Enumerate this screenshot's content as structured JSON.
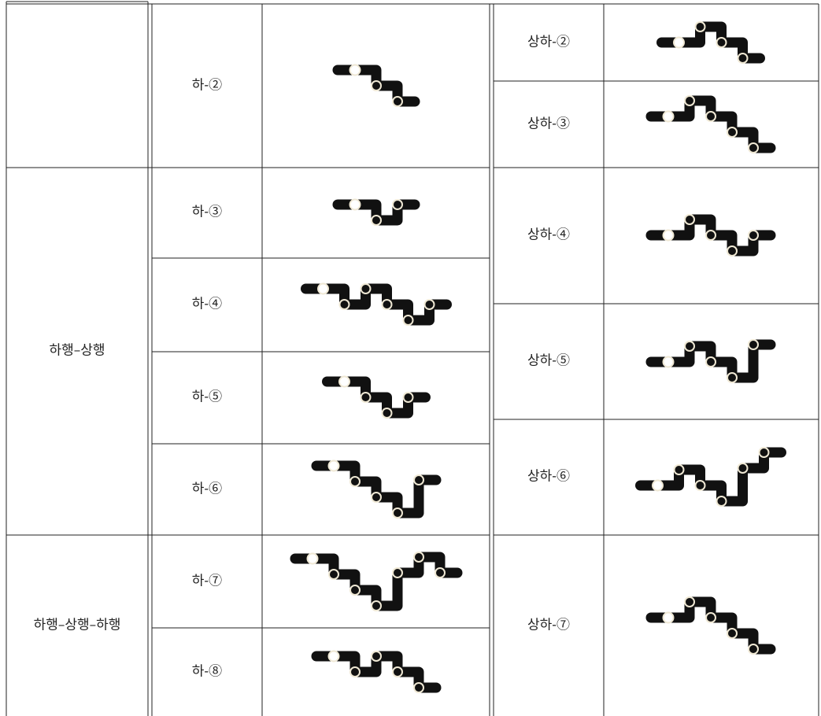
{
  "left": {
    "groups": [
      "하행–상행",
      "하행–상행–하행"
    ],
    "rows": [
      "하-②",
      "하-③",
      "하-④",
      "하-⑤",
      "하-⑥",
      "하-⑦",
      "하-⑧"
    ]
  },
  "right": {
    "rows": [
      "상하-②",
      "상하-③",
      "상하-④",
      "상하-⑤",
      "상하-⑥",
      "상하-⑦"
    ]
  }
}
